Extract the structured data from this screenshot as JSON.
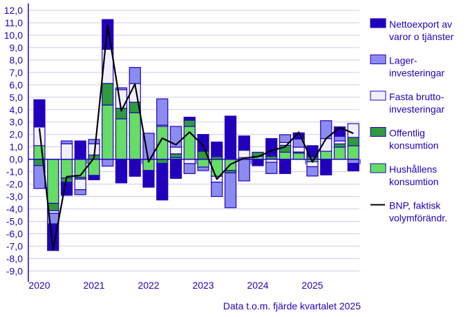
{
  "chart_data": {
    "type": "bar",
    "stacked": true,
    "ylim": [
      -9,
      12
    ],
    "ytick_step": 1,
    "ytick_labels": [
      "-9,0",
      "-8,0",
      "-7,0",
      "-6,0",
      "-5,0",
      "-4,0",
      "-3,0",
      "-2,0",
      "-1,0",
      "0,0",
      "1,0",
      "2,0",
      "3,0",
      "4,0",
      "5,0",
      "6,0",
      "7,0",
      "8,0",
      "9,0",
      "10,0",
      "11,0",
      "12,0"
    ],
    "grid": true,
    "legend_position": "right",
    "xtick_labels": [
      "2020",
      "2021",
      "2022",
      "2023",
      "2024",
      "2025"
    ],
    "categories": [
      "2020K1",
      "2020K2",
      "2020K3",
      "2020K4",
      "2021K1",
      "2021K2",
      "2021K3",
      "2021K4",
      "2022K1",
      "2022K2",
      "2022K3",
      "2022K4",
      "2023K1",
      "2023K2",
      "2023K3",
      "2023K4",
      "2024K1",
      "2024K2",
      "2024K3",
      "2024K4",
      "2025K1",
      "2025K2",
      "2025K3",
      "2025K4"
    ],
    "series": [
      {
        "name": "Hushållens konsumtion",
        "color": "#66dd66",
        "values": [
          1.1,
          -3.55,
          -1.5,
          -1.45,
          -1.3,
          4.37,
          3.26,
          3.75,
          -0.9,
          2.65,
          0.13,
          2.65,
          -0.63,
          -1.37,
          -0.9,
          0.13,
          0.24,
          0.0,
          0.57,
          0.5,
          -0.2,
          0.65,
          0.98,
          1.09
        ]
      },
      {
        "name": "Offentlig konsumtion",
        "color": "#2e9b3f",
        "values": [
          -0.5,
          -0.6,
          -0.35,
          -0.15,
          0.35,
          1.74,
          0.85,
          0.85,
          0.0,
          -0.33,
          0.31,
          0.5,
          0.65,
          0.22,
          -0.2,
          0.0,
          0.33,
          0.24,
          0.56,
          0.09,
          0.2,
          0.0,
          0.26,
          0.67
        ]
      },
      {
        "name": "Fasta bruttoinvesteringar",
        "color": "#f0f0fa",
        "values": [
          1.5,
          -0.2,
          1.25,
          -0.85,
          0.9,
          2.75,
          1.5,
          1.5,
          0.0,
          0.1,
          0.54,
          -0.35,
          0.0,
          -0.48,
          0.0,
          0.6,
          0.0,
          -0.24,
          0.22,
          0.39,
          -0.4,
          1.02,
          0.24,
          1.11
        ]
      },
      {
        "name": "Lagerinvesteringar",
        "color": "#8c8cf0",
        "values": [
          -1.85,
          -0.85,
          0.23,
          -0.4,
          0.35,
          -0.55,
          0.15,
          1.3,
          2.1,
          2.12,
          1.67,
          -0.8,
          -0.27,
          -1.15,
          -2.8,
          -1.74,
          0.0,
          -0.91,
          0.63,
          0.65,
          -0.75,
          1.44,
          0.37,
          -0.33
        ]
      },
      {
        "name": "Nettoexport av varor o tjänster",
        "color": "#2200bb",
        "values": [
          2.2,
          -2.15,
          -1.05,
          1.48,
          -0.35,
          2.4,
          -1.9,
          -1.37,
          -1.35,
          -2.95,
          -1.54,
          0.24,
          1.35,
          1.17,
          3.48,
          1.15,
          -0.52,
          1.43,
          -1.15,
          0.5,
          0.9,
          -1.26,
          0.76,
          -0.6
        ]
      }
    ],
    "line": {
      "name": "BNP, faktisk volymförändr.",
      "color": "#000000",
      "values": [
        2.5,
        -7.3,
        -1.4,
        -1.3,
        0.1,
        10.8,
        3.9,
        6.07,
        -0.2,
        1.7,
        1.17,
        2.19,
        1.1,
        -1.6,
        -0.4,
        0.1,
        0.2,
        0.7,
        1.0,
        2.18,
        -0.22,
        1.67,
        2.56,
        2.09
      ]
    },
    "legend": [
      {
        "key": "netto",
        "line1": "Nettoexport av",
        "line2": "varor o tjänster",
        "color": "#2200bb"
      },
      {
        "key": "lager",
        "line1": "Lager-",
        "line2": "investeringar",
        "color": "#8c8cf0"
      },
      {
        "key": "fasta",
        "line1": "Fasta brutto-",
        "line2": "investeringar",
        "color": "#f0f0fa"
      },
      {
        "key": "off",
        "line1": "Offentlig",
        "line2": "konsumtion",
        "color": "#2e9b3f"
      },
      {
        "key": "hush",
        "line1": "Hushållens",
        "line2": "konsumtion",
        "color": "#66dd66"
      },
      {
        "key": "bnp",
        "line1": "BNP, faktisk",
        "line2": "volymförändr.",
        "color": "#000000"
      }
    ],
    "footnote": "Data t.o.m. fjärde kvartalet 2025"
  }
}
